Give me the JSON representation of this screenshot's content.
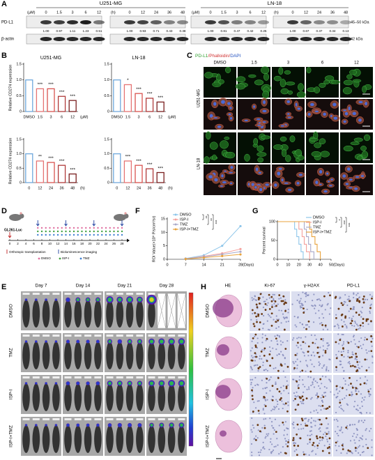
{
  "figure": {
    "letters": [
      "A",
      "B",
      "C",
      "D",
      "E",
      "F",
      "G",
      "H"
    ],
    "blot": {
      "cell_lines": [
        "U251-MG",
        "LN-18"
      ],
      "blocks": [
        {
          "unit": "(μM)",
          "lanes": [
            "0",
            "1.5",
            "3",
            "6",
            "12"
          ],
          "quant": [
            "1.00",
            "0.97",
            "1.11",
            "1.23",
            "0.51"
          ]
        },
        {
          "unit": "(h)",
          "lanes": [
            "0",
            "12",
            "24",
            "36",
            "48"
          ],
          "quant": [
            "1.00",
            "0.93",
            "0.71",
            "0.43",
            "0.38"
          ]
        },
        {
          "unit": "(μM)",
          "lanes": [
            "0",
            "1.5",
            "3",
            "6",
            "12"
          ],
          "quant": [
            "1.00",
            "0.81",
            "0.47",
            "0.42",
            "0.25"
          ]
        },
        {
          "unit": "(h)",
          "lanes": [
            "0",
            "12",
            "24",
            "36",
            "48"
          ],
          "quant": [
            "1.00",
            "0.67",
            "0.37",
            "0.34",
            "0.13"
          ]
        }
      ],
      "rows": [
        "PD-L1",
        "β-actin"
      ],
      "sizes": [
        "45–50 kDa",
        "42 kDa"
      ]
    },
    "if_stain": {
      "stain": [
        "PD-L1",
        "/Phalloidin/",
        "DAPI"
      ],
      "columns": [
        "DMSO",
        "1.5",
        "3",
        "6",
        "12"
      ],
      "rows": [
        "U251-MG",
        "LN-18"
      ]
    },
    "schedule": {
      "cells": "GL261-Luc",
      "days": [
        "0",
        "2",
        "4",
        "6",
        "8",
        "10",
        "12",
        "14",
        "16",
        "18",
        "20",
        "22",
        "24",
        "26",
        "28"
      ],
      "legend": [
        "Orthotopic transplantation",
        "Bioluminescence imaging",
        "DMSO",
        "ISP-I",
        "TMZ"
      ]
    },
    "imaging": {
      "days": [
        "Day 7",
        "Day 14",
        "Day 21",
        "Day 28"
      ],
      "groups": [
        "DMSO",
        "TMZ",
        "ISP-I",
        "ISP-I+TMZ"
      ]
    },
    "ihc": {
      "stains": [
        "HE",
        "Ki-67",
        "γ-H2AX",
        "PD-L1"
      ],
      "groups": [
        "DMSO",
        "TMZ",
        "ISP-I",
        "ISP-I+TMZ"
      ]
    }
  },
  "chart_data": [
    {
      "type": "bar",
      "title": "U251-MG",
      "y_label": "Relative CD274 expression",
      "x_unit": "(μM)",
      "categories": [
        "DMSO",
        "1.5",
        "3",
        "6",
        "12"
      ],
      "values": [
        1.0,
        0.72,
        0.72,
        0.48,
        0.35
      ],
      "significance": [
        null,
        "***",
        "***",
        "***",
        "***"
      ],
      "colors": [
        "#6fa8dc",
        "#e57373",
        "#d9534f",
        "#b03a3a",
        "#7a1f1f"
      ],
      "ylim": [
        0,
        1.5
      ],
      "yticks": [
        0,
        0.5,
        {
          "value": 1,
          "label": "1.0"
        },
        1.5
      ]
    },
    {
      "type": "bar",
      "title": "LN-18",
      "x_unit": "(μM)",
      "categories": [
        "DMSO",
        "1.5",
        "3",
        "6",
        "12"
      ],
      "values": [
        1.0,
        0.85,
        0.57,
        0.42,
        0.3
      ],
      "significance": [
        null,
        "*",
        "***",
        "***",
        "***"
      ],
      "colors": [
        "#6fa8dc",
        "#e57373",
        "#d9534f",
        "#b03a3a",
        "#7a1f1f"
      ],
      "ylim": [
        0,
        1.5
      ],
      "yticks": [
        0,
        0.5,
        {
          "value": 1,
          "label": "1.0"
        },
        1.5
      ]
    },
    {
      "type": "bar",
      "y_label": "Relative CD274 expression",
      "x_unit": "(h)",
      "categories": [
        "0",
        "12",
        "24",
        "36",
        "48"
      ],
      "values": [
        1.0,
        0.75,
        0.7,
        0.6,
        0.3
      ],
      "significance": [
        null,
        "**",
        "***",
        "***",
        "***"
      ],
      "colors": [
        "#6fa8dc",
        "#e57373",
        "#d9534f",
        "#b03a3a",
        "#7a1f1f"
      ],
      "ylim": [
        0,
        1.5
      ],
      "yticks": [
        0,
        0.5,
        {
          "value": 1,
          "label": "1.0"
        },
        1.5
      ]
    },
    {
      "type": "bar",
      "x_unit": "(h)",
      "categories": [
        "0",
        "12",
        "24",
        "36",
        "48"
      ],
      "values": [
        1.0,
        0.75,
        0.6,
        0.48,
        0.35
      ],
      "significance": [
        null,
        "***",
        "***",
        "***",
        "***"
      ],
      "colors": [
        "#6fa8dc",
        "#e57373",
        "#d9534f",
        "#b03a3a",
        "#7a1f1f"
      ],
      "ylim": [
        0,
        1.5
      ],
      "yticks": [
        0,
        0.5,
        {
          "value": 1,
          "label": "1.0"
        },
        1.5
      ]
    },
    {
      "type": "line",
      "y_label": "ROI Value(×10⁸ P/s/cm²/sr)",
      "x_unit": "(Days)",
      "x": [
        7,
        14,
        21,
        28
      ],
      "series": [
        {
          "name": "DMSO",
          "color": "#8ec6ea",
          "values": [
            0.3,
            1.5,
            5,
            12.3
          ]
        },
        {
          "name": "ISP-I",
          "color": "#f4a09c",
          "values": [
            0.2,
            1.1,
            2.2,
            3.8
          ]
        },
        {
          "name": "TMZ",
          "color": "#a9a9c9",
          "values": [
            0.2,
            0.9,
            1.8,
            2.8
          ]
        },
        {
          "name": "ISP-I+TMZ",
          "color": "#e8a33d",
          "values": [
            0.1,
            0.6,
            1.2,
            1.8
          ]
        }
      ],
      "significance": [
        "**",
        "**",
        "***"
      ],
      "legend": "top-left",
      "xlim": [
        0,
        28
      ],
      "xticks": [
        0,
        7,
        14,
        21,
        28
      ],
      "ylim": [
        0,
        15
      ],
      "yticks": [
        0,
        5,
        10,
        15
      ]
    },
    {
      "type": "step",
      "y_label": "Percent survival",
      "x_unit": "(Days)",
      "series": [
        {
          "name": "DMSO",
          "color": "#8ec6ea",
          "x": [
            0,
            16,
            16,
            18,
            18,
            20,
            20,
            22,
            22,
            24,
            24
          ],
          "values": [
            100,
            100,
            80,
            80,
            60,
            60,
            40,
            40,
            20,
            20,
            0
          ]
        },
        {
          "name": "ISP-I",
          "color": "#f4a09c",
          "x": [
            0,
            20,
            20,
            23,
            23,
            25,
            25,
            27,
            27,
            30,
            30
          ],
          "values": [
            100,
            100,
            80,
            80,
            60,
            60,
            40,
            40,
            20,
            20,
            0
          ]
        },
        {
          "name": "TMZ",
          "color": "#a9a9c9",
          "x": [
            0,
            25,
            25,
            27,
            27,
            29,
            29,
            31,
            31,
            34,
            34
          ],
          "values": [
            100,
            100,
            80,
            80,
            60,
            60,
            40,
            40,
            20,
            20,
            0
          ]
        },
        {
          "name": "ISP-I+TMZ",
          "color": "#e8a33d",
          "x": [
            0,
            30,
            30,
            32,
            32,
            35,
            35,
            37,
            37,
            40,
            40
          ],
          "values": [
            100,
            100,
            80,
            80,
            60,
            60,
            40,
            40,
            20,
            20,
            0
          ]
        }
      ],
      "significance": [
        "*",
        "***",
        "***"
      ],
      "legend": "top-right",
      "xlim": [
        0,
        50
      ],
      "xticks": [
        0,
        10,
        20,
        30,
        40,
        50
      ],
      "ylim": [
        0,
        100
      ],
      "yticks": [
        0,
        50,
        100
      ]
    }
  ]
}
